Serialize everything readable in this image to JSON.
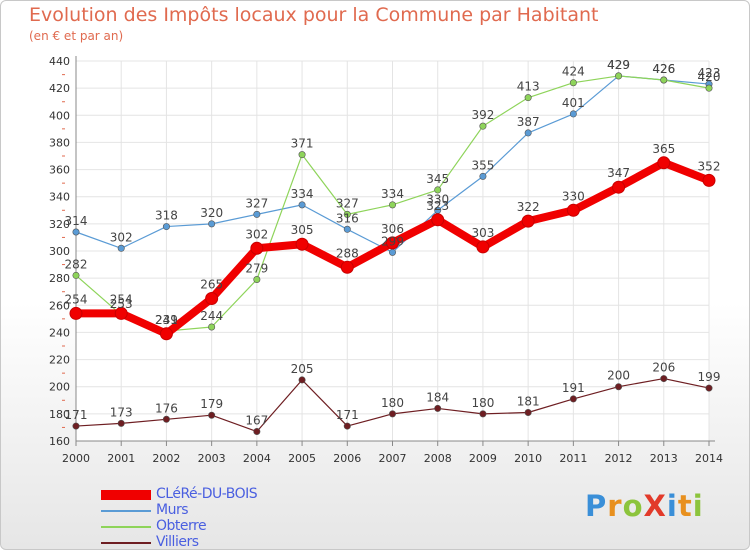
{
  "title": "Evolution des Impôts locaux pour la Commune par Habitant",
  "subtitle": "(en € et par an)",
  "brand": {
    "text": "ProXiti",
    "letters": [
      {
        "ch": "P",
        "color": "#3a8fd8"
      },
      {
        "ch": "r",
        "color": "#e8901e"
      },
      {
        "ch": "o",
        "color": "#8cc43c"
      },
      {
        "ch": "X",
        "color": "#e23a2a"
      },
      {
        "ch": "i",
        "color": "#3a8fd8"
      },
      {
        "ch": "t",
        "color": "#e8901e"
      },
      {
        "ch": "i",
        "color": "#8cc43c"
      }
    ]
  },
  "chart_data": {
    "type": "line",
    "x": [
      "2000",
      "2001",
      "2002",
      "2003",
      "2004",
      "2005",
      "2006",
      "2007",
      "2008",
      "2009",
      "2010",
      "2011",
      "2012",
      "2013",
      "2014"
    ],
    "ylim": [
      160,
      440
    ],
    "yticks": [
      "160",
      "180",
      "200",
      "220",
      "240",
      "260",
      "280",
      "300",
      "320",
      "340",
      "360",
      "380",
      "400",
      "420",
      "440"
    ],
    "grid": true,
    "legend_position": "bottom-left",
    "series": [
      {
        "name": "Murs",
        "color": "#5a9bd5",
        "values": [
          314,
          302,
          318,
          320,
          327,
          334,
          316,
          299,
          330,
          355,
          387,
          401,
          429,
          426,
          423
        ]
      },
      {
        "name": "Obterre",
        "color": "#8ed45a",
        "values": [
          282,
          253,
          241,
          244,
          279,
          371,
          327,
          334,
          345,
          392,
          413,
          424,
          429,
          426,
          420
        ]
      },
      {
        "name": "Villiers",
        "color": "#6e1e22",
        "values": [
          171,
          173,
          176,
          179,
          167,
          205,
          171,
          180,
          184,
          180,
          181,
          191,
          200,
          206,
          199
        ]
      },
      {
        "name": "CLéRé-DU-BOIS",
        "color": "#f00000",
        "values": [
          254,
          254,
          239,
          265,
          302,
          305,
          288,
          306,
          323,
          303,
          322,
          330,
          347,
          365,
          352
        ]
      }
    ]
  }
}
